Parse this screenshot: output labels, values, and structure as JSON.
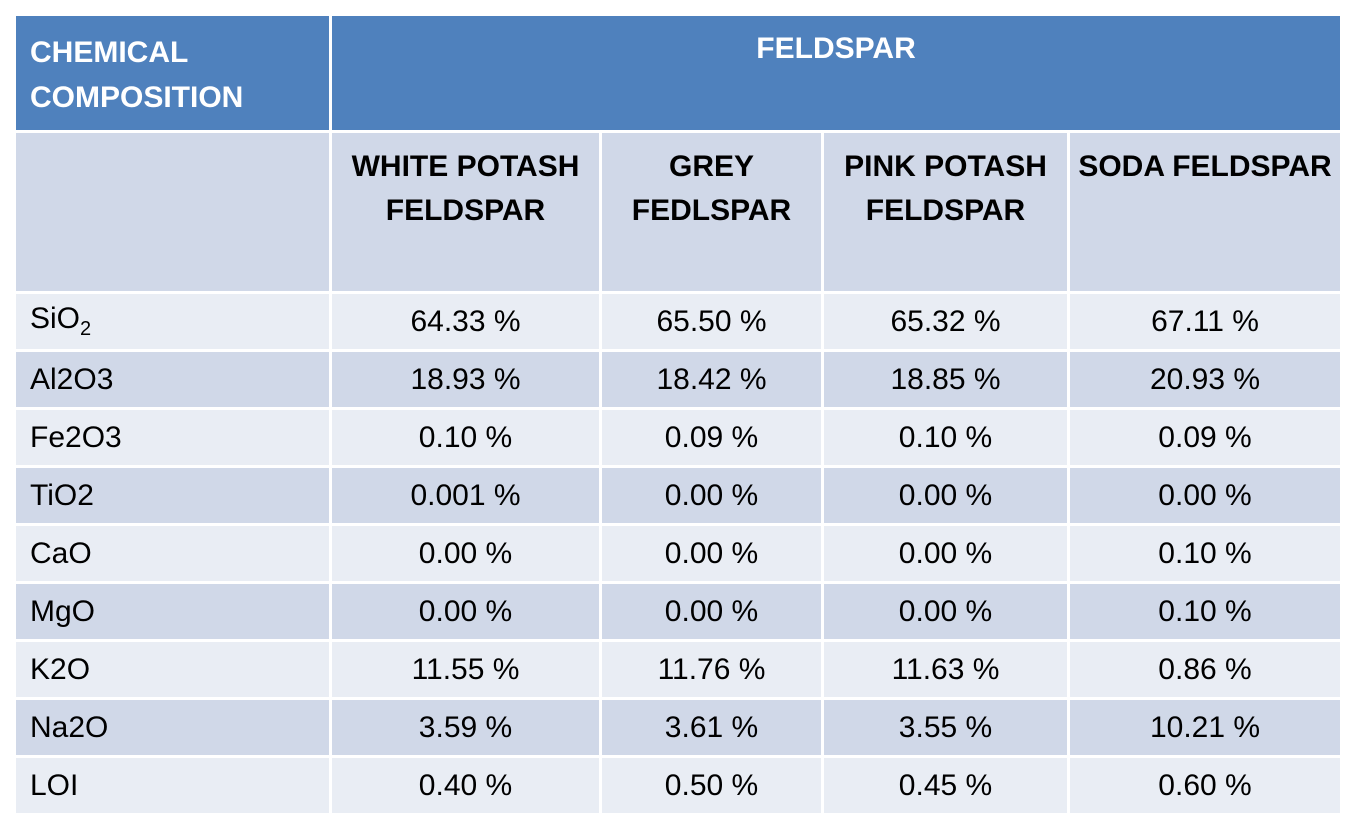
{
  "header": {
    "composition_label": "CHEMICAL COMPOSITION",
    "group_label": "FELDSPAR"
  },
  "columns": [
    "WHITE POTASH FELDSPAR",
    "GREY FEDLSPAR",
    "PINK POTASH FELDSPAR",
    "SODA FELDSPAR"
  ],
  "rows": [
    {
      "name": "SiO",
      "sub": "2",
      "values": [
        "64.33 %",
        "65.50 %",
        "65.32 %",
        "67.11 %"
      ]
    },
    {
      "name": "Al2O3",
      "values": [
        "18.93 %",
        "18.42 %",
        "18.85 %",
        "20.93 %"
      ]
    },
    {
      "name": "Fe2O3",
      "values": [
        "0.10 %",
        "0.09 %",
        "0.10  %",
        "0.09 %"
      ]
    },
    {
      "name": "TiO2",
      "values": [
        "0.001 %",
        "0.00 %",
        "0.00 %",
        "0.00 %"
      ]
    },
    {
      "name": "CaO",
      "values": [
        "0.00 %",
        "0.00 %",
        "0.00 %",
        "0.10 %"
      ]
    },
    {
      "name": "MgO",
      "values": [
        "0.00 %",
        "0.00 %",
        "0.00 %",
        "0.10 %"
      ]
    },
    {
      "name": "K2O",
      "values": [
        "11.55 %",
        "11.76 %",
        "11.63 %",
        "0.86 %"
      ]
    },
    {
      "name": "Na2O",
      "values": [
        "3.59 %",
        "3.61 %",
        "3.55 %",
        "10.21 %"
      ]
    },
    {
      "name": "LOI",
      "values": [
        "0.40 %",
        "0.50 %",
        "0.45 %",
        "0.60 %"
      ]
    }
  ],
  "colors": {
    "header_bg": "#4f81bd",
    "band_dark": "#d0d8e8",
    "band_light": "#e9edf4"
  }
}
